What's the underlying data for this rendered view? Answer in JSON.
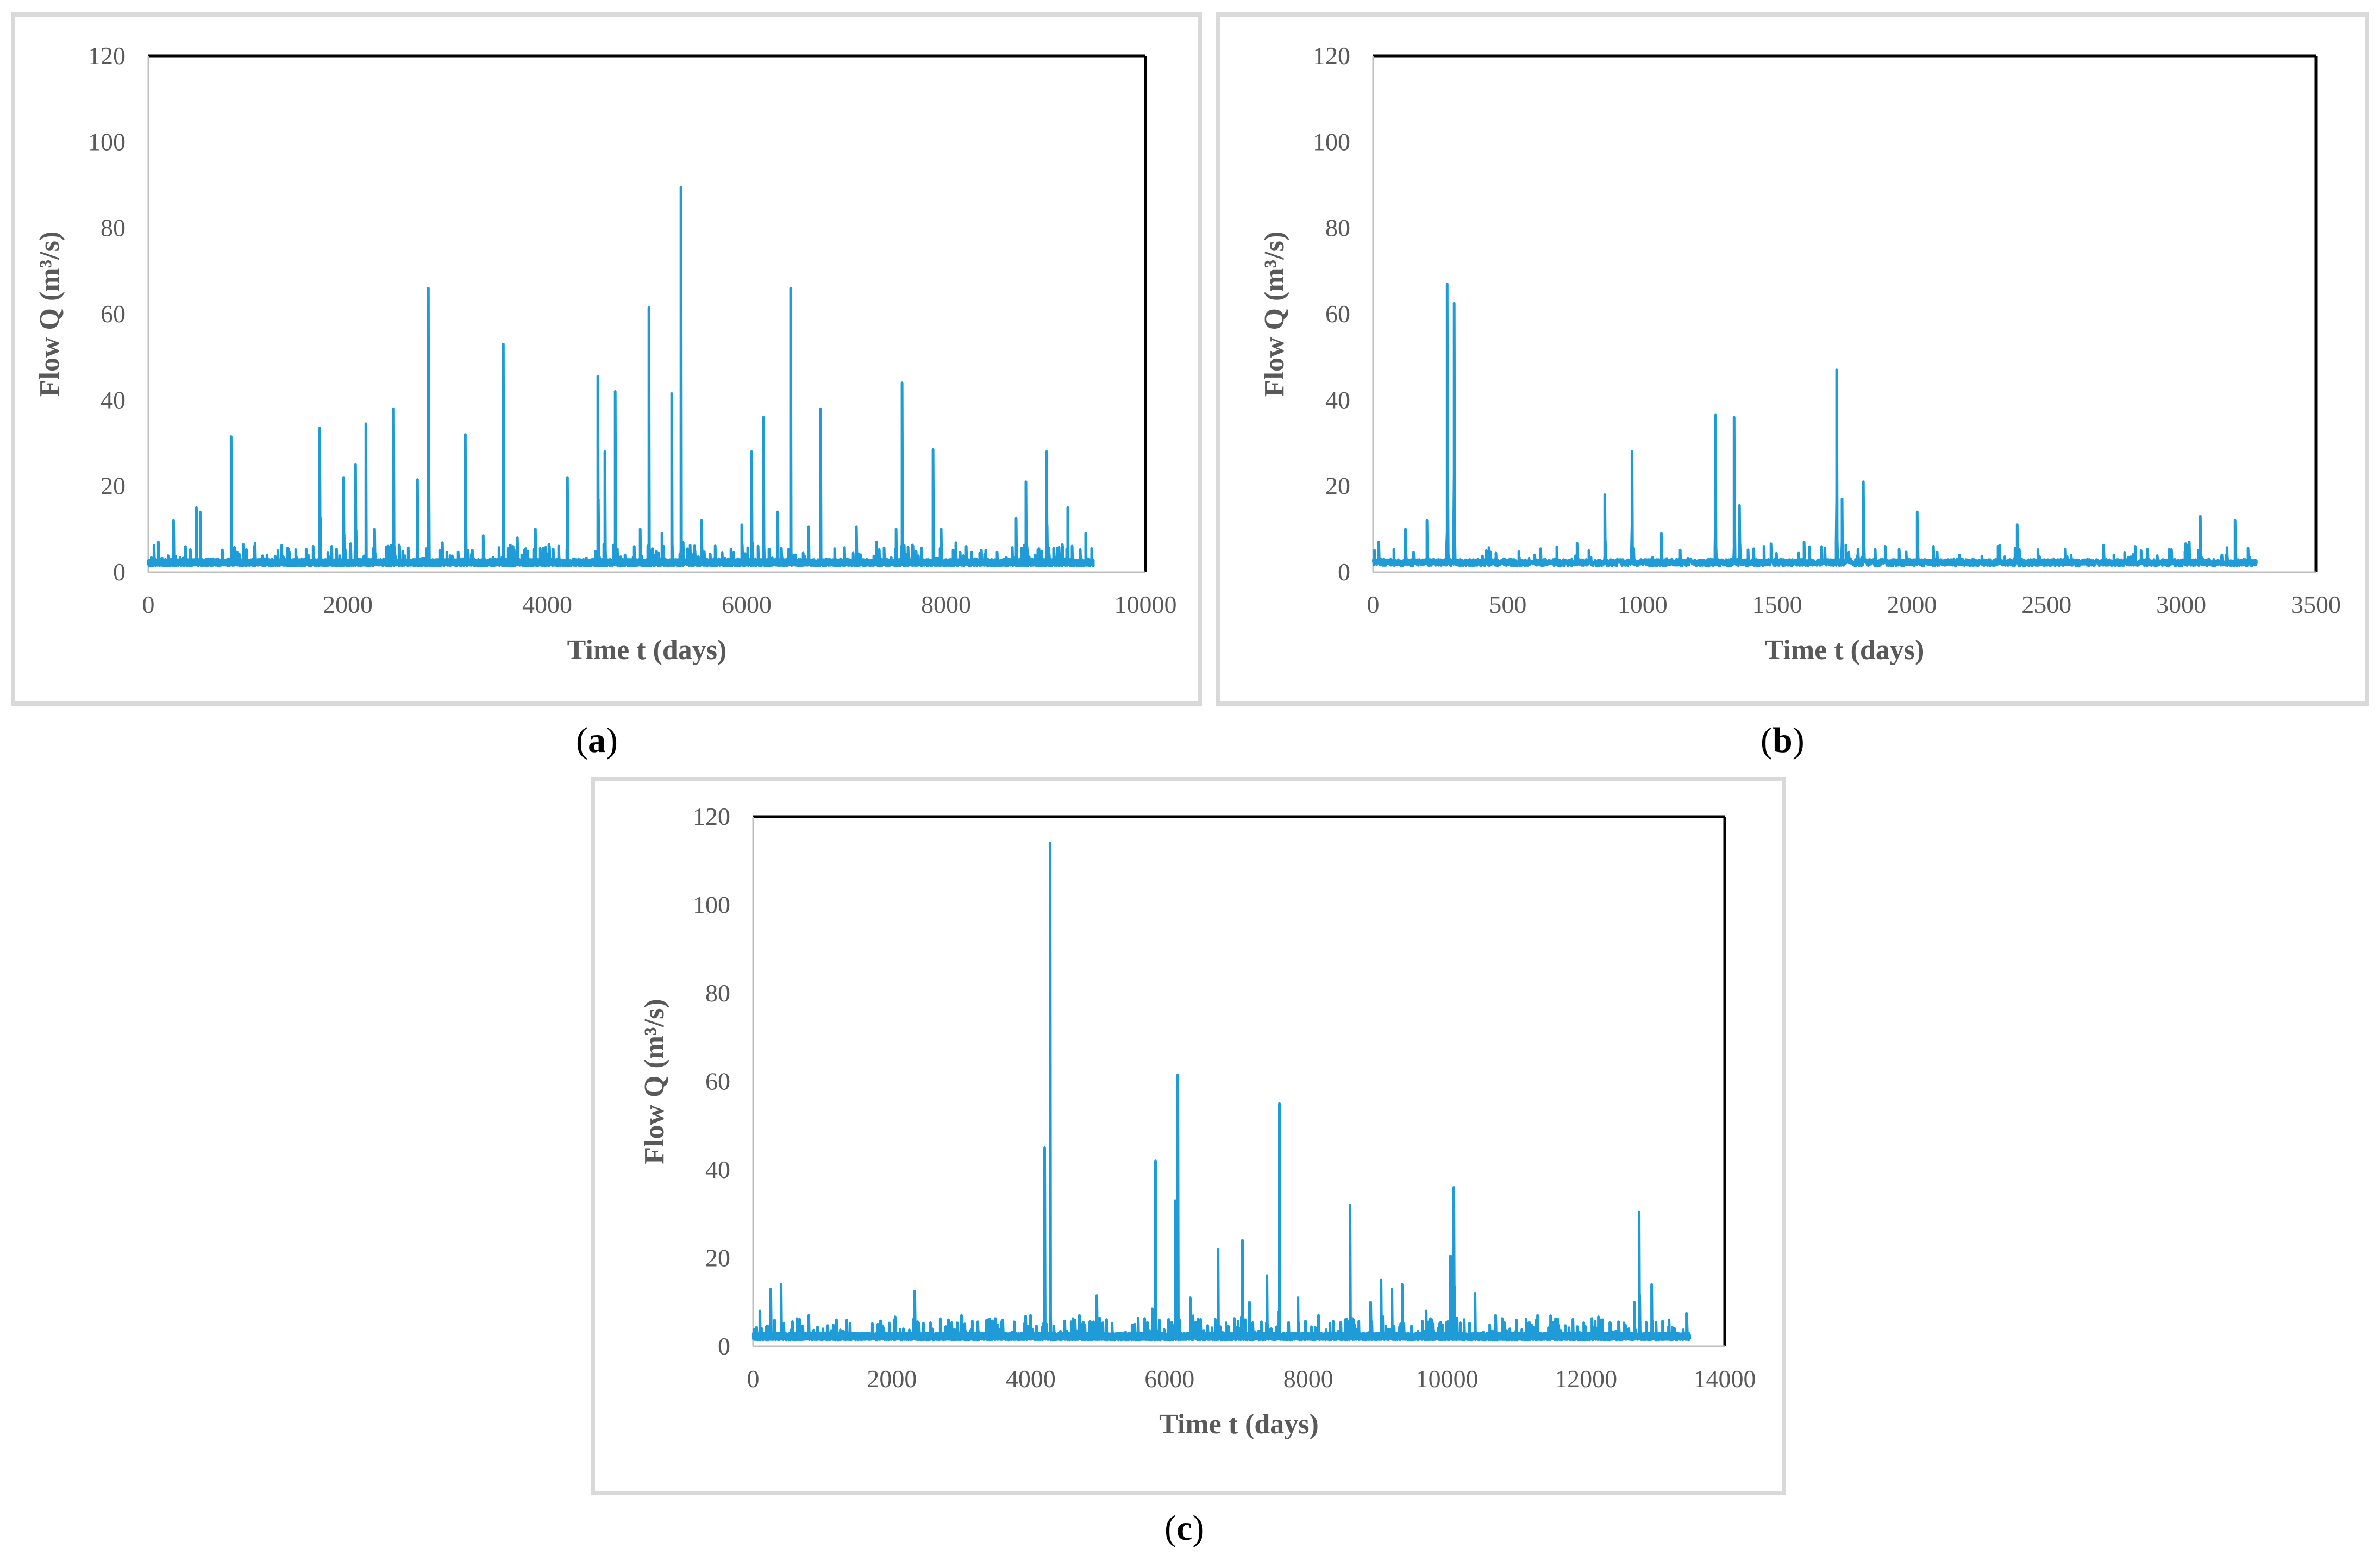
{
  "captions": [
    {
      "open": "(",
      "letter": "a",
      "close": ")"
    },
    {
      "open": "(",
      "letter": "b",
      "close": ")"
    },
    {
      "open": "(",
      "letter": "c",
      "close": ")"
    }
  ],
  "chart_data": [
    {
      "type": "line",
      "title": "",
      "xlabel": "Time t (days)",
      "ylabel": "Flow Q (m³/s)",
      "xlim": [
        0,
        10000
      ],
      "ylim": [
        0,
        120
      ],
      "x_ticks": [
        0,
        2000,
        4000,
        6000,
        8000,
        10000
      ],
      "y_ticks": [
        0,
        20,
        40,
        60,
        80,
        100,
        120
      ],
      "color": "#1f9bd7",
      "n_days": 9480,
      "base_flow": 1.5,
      "peaks": [
        [
          100,
          7
        ],
        [
          250,
          12
        ],
        [
          480,
          15
        ],
        [
          520,
          14
        ],
        [
          830,
          31.5
        ],
        [
          950,
          6.5
        ],
        [
          1300,
          5
        ],
        [
          1650,
          6
        ],
        [
          1720,
          33.5
        ],
        [
          1960,
          22
        ],
        [
          2080,
          25
        ],
        [
          2180,
          34.5
        ],
        [
          2270,
          10
        ],
        [
          2460,
          38
        ],
        [
          2700,
          21.5
        ],
        [
          2810,
          66
        ],
        [
          3180,
          32
        ],
        [
          3360,
          8.5
        ],
        [
          3560,
          53
        ],
        [
          3700,
          8
        ],
        [
          3880,
          10
        ],
        [
          4200,
          22
        ],
        [
          4510,
          45.5
        ],
        [
          4580,
          28
        ],
        [
          4680,
          42
        ],
        [
          4930,
          10
        ],
        [
          5020,
          61.5
        ],
        [
          5150,
          9
        ],
        [
          5250,
          41.5
        ],
        [
          5340,
          89.5
        ],
        [
          5550,
          12
        ],
        [
          5950,
          11
        ],
        [
          6050,
          28
        ],
        [
          6170,
          36
        ],
        [
          6310,
          14
        ],
        [
          6440,
          66
        ],
        [
          6620,
          10.5
        ],
        [
          6740,
          38
        ],
        [
          7100,
          10.5
        ],
        [
          7300,
          7
        ],
        [
          7500,
          10
        ],
        [
          7560,
          44
        ],
        [
          7870,
          28.5
        ],
        [
          7950,
          10
        ],
        [
          8200,
          6
        ],
        [
          8700,
          12.5
        ],
        [
          8800,
          21
        ],
        [
          9010,
          28
        ],
        [
          9220,
          15
        ],
        [
          9400,
          9
        ],
        [
          9460,
          5.5
        ]
      ]
    },
    {
      "type": "line",
      "title": "",
      "xlabel": "Time t (days)",
      "ylabel": "Flow Q (m³/s)",
      "xlim": [
        0,
        3500
      ],
      "ylim": [
        0,
        120
      ],
      "x_ticks": [
        0,
        500,
        1000,
        1500,
        2000,
        2500,
        3000,
        3500
      ],
      "y_ticks": [
        0,
        20,
        40,
        60,
        80,
        100,
        120
      ],
      "color": "#1f9bd7",
      "n_days": 3280,
      "base_flow": 1.5,
      "peaks": [
        [
          20,
          7
        ],
        [
          120,
          10
        ],
        [
          200,
          12
        ],
        [
          275,
          67
        ],
        [
          300,
          62.5
        ],
        [
          420,
          5
        ],
        [
          600,
          4
        ],
        [
          800,
          5
        ],
        [
          860,
          18
        ],
        [
          960,
          28
        ],
        [
          1070,
          9
        ],
        [
          1270,
          36.5
        ],
        [
          1340,
          36
        ],
        [
          1360,
          15.5
        ],
        [
          1450,
          6
        ],
        [
          1600,
          7
        ],
        [
          1720,
          47
        ],
        [
          1740,
          17
        ],
        [
          1820,
          21
        ],
        [
          1900,
          6
        ],
        [
          2020,
          14
        ],
        [
          2080,
          6
        ],
        [
          2320,
          6
        ],
        [
          2390,
          11
        ],
        [
          2750,
          4
        ],
        [
          2850,
          5
        ],
        [
          3030,
          7
        ],
        [
          3070,
          13
        ],
        [
          3150,
          4
        ],
        [
          3200,
          12
        ]
      ]
    },
    {
      "type": "line",
      "title": "",
      "xlabel": "Time t (days)",
      "ylabel": "Flow Q (m³/s)",
      "xlim": [
        0,
        14000
      ],
      "ylim": [
        0,
        120
      ],
      "x_ticks": [
        0,
        2000,
        4000,
        6000,
        8000,
        10000,
        12000,
        14000
      ],
      "y_ticks": [
        0,
        20,
        40,
        60,
        80,
        100,
        120
      ],
      "color": "#1f9bd7",
      "n_days": 13500,
      "base_flow": 1.5,
      "peaks": [
        [
          100,
          8
        ],
        [
          250,
          13
        ],
        [
          400,
          14
        ],
        [
          800,
          7
        ],
        [
          1200,
          6
        ],
        [
          1800,
          5
        ],
        [
          2330,
          12.5
        ],
        [
          3000,
          7
        ],
        [
          3600,
          6
        ],
        [
          4000,
          7
        ],
        [
          4200,
          45
        ],
        [
          4280,
          114
        ],
        [
          4700,
          7
        ],
        [
          4950,
          11.5
        ],
        [
          5500,
          5
        ],
        [
          5750,
          8.5
        ],
        [
          5800,
          42
        ],
        [
          6080,
          33
        ],
        [
          6120,
          61.5
        ],
        [
          6300,
          11
        ],
        [
          6700,
          22
        ],
        [
          7050,
          24
        ],
        [
          7150,
          10
        ],
        [
          7400,
          16
        ],
        [
          7580,
          55
        ],
        [
          7850,
          11
        ],
        [
          8150,
          7
        ],
        [
          8600,
          32
        ],
        [
          8900,
          10
        ],
        [
          9050,
          15
        ],
        [
          9200,
          13
        ],
        [
          9350,
          14
        ],
        [
          9700,
          8
        ],
        [
          10050,
          20.5
        ],
        [
          10100,
          36
        ],
        [
          10400,
          12
        ],
        [
          10700,
          7
        ],
        [
          11300,
          7
        ],
        [
          12200,
          6
        ],
        [
          12700,
          10
        ],
        [
          12770,
          30.5
        ],
        [
          12950,
          14
        ],
        [
          13200,
          6
        ],
        [
          13450,
          7.5
        ]
      ]
    }
  ]
}
